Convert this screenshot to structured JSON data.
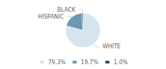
{
  "chart_data": {
    "type": "pie",
    "categories": [
      "WHITE",
      "HISPANIC",
      "BLACK"
    ],
    "values": [
      79.3,
      19.7,
      1.0
    ],
    "value_labels": [
      "79.3%",
      "19.7%",
      "1.0%"
    ],
    "colors": [
      "#d6e4ee",
      "#6a9ab5",
      "#2d4f6b"
    ],
    "legend": "bottom"
  }
}
